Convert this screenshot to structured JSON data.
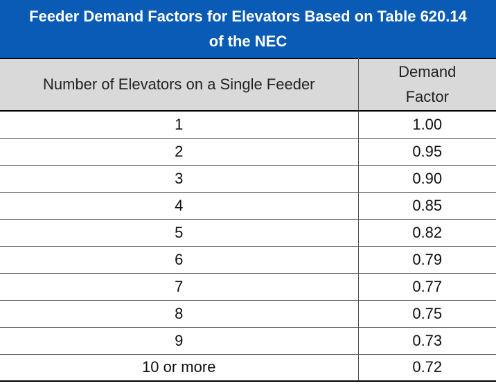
{
  "table": {
    "title": "Feeder Demand Factors for Elevators Based on Table 620.14 of the NEC",
    "headers": {
      "count": "Number of Elevators on a Single Feeder",
      "factor": "Demand Factor"
    },
    "rows": [
      {
        "count": "1",
        "factor": "1.00"
      },
      {
        "count": "2",
        "factor": "0.95"
      },
      {
        "count": "3",
        "factor": "0.90"
      },
      {
        "count": "4",
        "factor": "0.85"
      },
      {
        "count": "5",
        "factor": "0.82"
      },
      {
        "count": "6",
        "factor": "0.79"
      },
      {
        "count": "7",
        "factor": "0.77"
      },
      {
        "count": "8",
        "factor": "0.75"
      },
      {
        "count": "9",
        "factor": "0.73"
      },
      {
        "count": "10 or more",
        "factor": "0.72"
      }
    ]
  },
  "colors": {
    "title_background": "#0a5bb5",
    "header_background": "#d9d9d9"
  }
}
